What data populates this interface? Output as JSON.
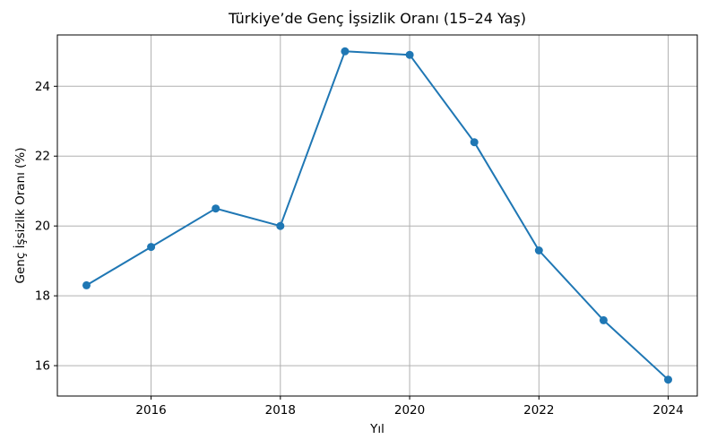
{
  "chart_data": {
    "type": "line",
    "title": "Türkiye’de Genç İşsizlik Oranı (15–24 Yaş)",
    "xlabel": "Yıl",
    "ylabel": "Genç İşsizlik Oranı (%)",
    "x": [
      2015,
      2016,
      2017,
      2018,
      2019,
      2020,
      2021,
      2022,
      2023,
      2024
    ],
    "y": [
      18.3,
      19.4,
      20.5,
      20.0,
      25.0,
      24.9,
      22.4,
      19.3,
      17.3,
      15.6
    ],
    "xticks": [
      2016,
      2018,
      2020,
      2022,
      2024
    ],
    "yticks": [
      16,
      18,
      20,
      22,
      24
    ],
    "xlim": [
      2014.55,
      2024.45
    ],
    "ylim": [
      15.13,
      25.47
    ],
    "grid": true,
    "legend": null,
    "line_color": "#1f77b4",
    "marker": "o",
    "marker_color": "#1f77b4",
    "grid_color": "#b0b0b0",
    "spine_color": "#000000",
    "text_color": "#000000",
    "background_color": "#ffffff"
  }
}
